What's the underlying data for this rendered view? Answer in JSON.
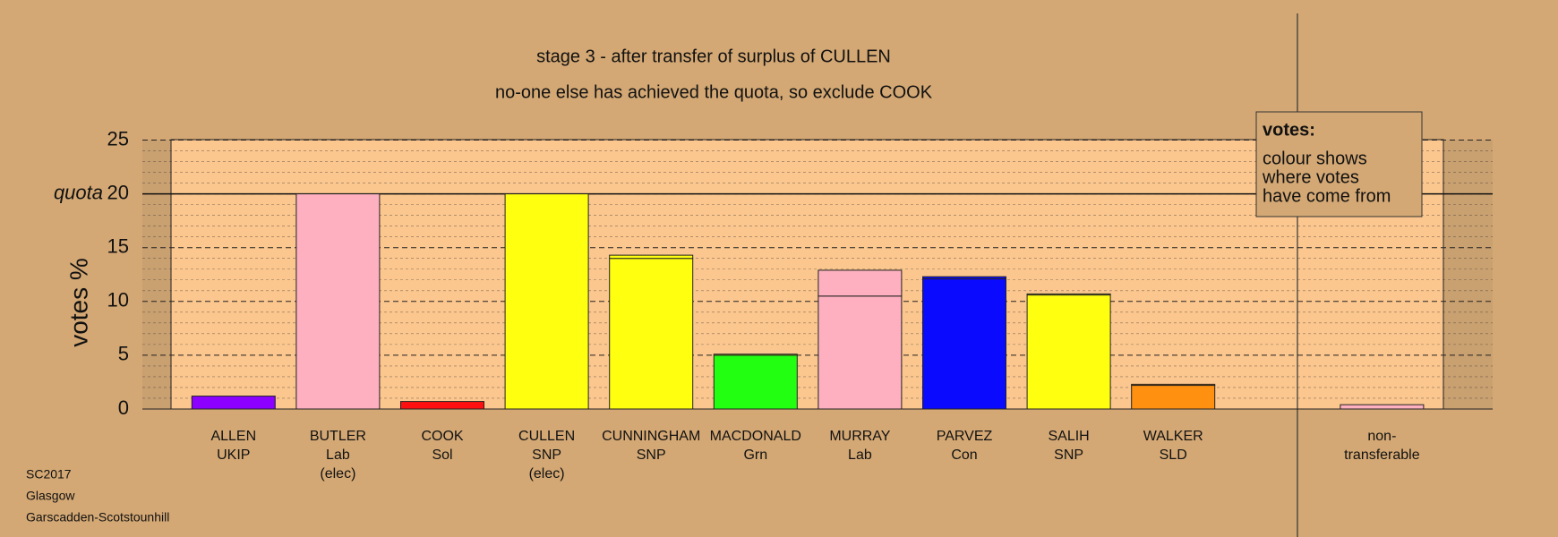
{
  "chart_data": {
    "type": "stacked-bar",
    "title": "stage 3 - after transfer of surplus of CULLEN",
    "subtitle": "no-one else has achieved the quota, so exclude COOK",
    "y_label": "votes %",
    "categories": [
      [
        "ALLEN",
        "UKIP"
      ],
      [
        "BUTLER",
        "Lab",
        "(elec)"
      ],
      [
        "COOK",
        "Sol"
      ],
      [
        "CULLEN",
        "SNP",
        "(elec)"
      ],
      [
        "CUNNINGHAM",
        "SNP"
      ],
      [
        "MACDONALD",
        "Grn"
      ],
      [
        "MURRAY",
        "Lab"
      ],
      [
        "PARVEZ",
        "Con"
      ],
      [
        "SALIH",
        "SNP"
      ],
      [
        "WALKER",
        "SLD"
      ],
      null,
      [
        "non-",
        "transferable"
      ]
    ],
    "series": [
      {
        "values": [
          1.2,
          20,
          0.7,
          20,
          14.0,
          5.0,
          10.5,
          12.1,
          10.6,
          2.2,
          null,
          0.4
        ],
        "colors": [
          "#8b00ff",
          "#ffb0c0",
          "#ff1010",
          "#ffff10",
          "#ffff10",
          "#22ff10",
          "#ffb0c0",
          "#0a0aff",
          "#ffff10",
          "#ff9010",
          null,
          "#ffb0c0"
        ]
      },
      {
        "values": [
          null,
          null,
          null,
          null,
          0.3,
          0.1,
          2.4,
          0.2,
          0.1,
          0.1,
          null,
          null
        ],
        "colors": [
          null,
          null,
          null,
          null,
          "#ffff10",
          "#ffff10",
          "#ffb0c0",
          "#0a0aff",
          "#ffff10",
          "#ff9010",
          null,
          null
        ]
      }
    ],
    "ylim": [
      0,
      25
    ],
    "yticks": [
      0,
      5,
      10,
      15,
      20,
      25
    ],
    "minor_yticks": [
      1,
      2,
      3,
      4,
      6,
      7,
      8,
      9,
      11,
      12,
      13,
      14,
      16,
      17,
      18,
      19,
      21,
      22,
      23,
      24
    ],
    "quota": {
      "value": 20,
      "label": "quota"
    },
    "note": {
      "title": "votes:",
      "lines": [
        "colour shows",
        "where votes",
        "have come from"
      ]
    },
    "footer": [
      "SC2017",
      "Glasgow",
      "Garscadden-Scotstounhill"
    ]
  }
}
